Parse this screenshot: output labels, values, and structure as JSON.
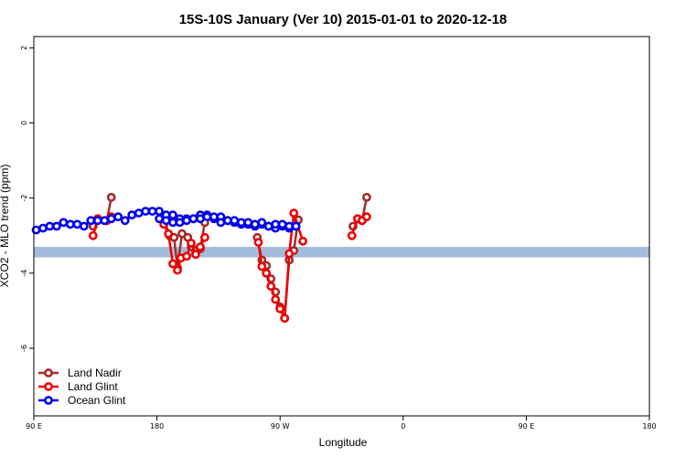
{
  "chart_data": {
    "type": "line",
    "title": "15S-10S January (Ver 10)   2015-01-01 to 2020-12-18",
    "xlabel": "Longitude",
    "ylabel": "XCO2 - MLO trend (ppm)",
    "xlim": [
      -90,
      180
    ],
    "ylim": [
      -7.8,
      2.3
    ],
    "x_ticks": [
      -90,
      -36,
      18,
      72,
      126,
      180
    ],
    "x_tick_labels": [
      "90 E",
      "180",
      "90 W",
      "0",
      "90 E",
      "180"
    ],
    "y_ticks": [
      -6,
      -4,
      -2,
      0,
      2
    ],
    "y_tick_labels": [
      "-6",
      "-4",
      "-2",
      "0",
      "2"
    ],
    "grid": false,
    "legend_position": "bottom-left",
    "band": {
      "color": "#a4bcdc",
      "y0": -3.58,
      "y1": -3.3
    },
    "series": [
      {
        "name": "Land Nadir",
        "color": "#a52a2a",
        "segments": [
          {
            "x": [
              -64,
              -62,
              -58,
              -56
            ],
            "y": [
              -2.75,
              -2.55,
              -2.6,
              -1.98
            ]
          },
          {
            "x": [
              -32.5,
              -30.5,
              -28.5,
              -27,
              -25,
              -22.5,
              -21,
              -19,
              -17,
              -15
            ],
            "y": [
              -2.62,
              -3.0,
              -3.05,
              -3.85,
              -2.95,
              -3.05,
              -3.3,
              -3.4,
              -3.35,
              -2.65
            ]
          },
          {
            "x": [
              8,
              10,
              12,
              14,
              16,
              18,
              20,
              22,
              24,
              26
            ],
            "y": [
              -3.05,
              -3.65,
              -3.8,
              -4.15,
              -4.5,
              -4.9,
              -5.2,
              -3.65,
              -3.4,
              -2.58
            ]
          },
          {
            "x": [
              50,
              52,
              54,
              56
            ],
            "y": [
              -2.75,
              -2.55,
              -2.6,
              -1.98
            ]
          }
        ]
      },
      {
        "name": "Land Glint",
        "color": "#ee0000",
        "segments": [
          {
            "x": [
              -64,
              -62,
              -58,
              -56
            ],
            "y": [
              -3.0,
              -2.55,
              -2.6,
              -2.5
            ]
          },
          {
            "x": [
              -33,
              -31,
              -29,
              -27,
              -25.5,
              -23,
              -21,
              -19,
              -17,
              -15
            ],
            "y": [
              -2.7,
              -2.95,
              -3.75,
              -3.92,
              -3.6,
              -3.55,
              -3.2,
              -3.5,
              -3.3,
              -3.05
            ]
          },
          {
            "x": [
              8.5,
              10,
              12,
              14,
              16,
              18,
              20,
              22,
              24,
              28
            ],
            "y": [
              -3.18,
              -3.82,
              -4.0,
              -4.35,
              -4.7,
              -4.95,
              -5.2,
              -3.48,
              -2.4,
              -3.15
            ]
          },
          {
            "x": [
              49.5,
              52,
              54,
              56
            ],
            "y": [
              -3.0,
              -2.55,
              -2.6,
              -2.5
            ]
          }
        ]
      },
      {
        "name": "Ocean Glint",
        "color": "#0000ee",
        "segments": [
          {
            "x": [
              -89,
              -86,
              -83,
              -80,
              -77,
              -74,
              -71,
              -68,
              -65,
              -62,
              -59,
              -56,
              -53,
              -50,
              -47,
              -44,
              -41,
              -38,
              -35,
              -32,
              -29,
              -26,
              -23,
              -20,
              -17,
              -14,
              -11,
              -8,
              -5,
              -2,
              1,
              4,
              7,
              10,
              13,
              16,
              19,
              22,
              25
            ],
            "y": [
              -2.85,
              -2.8,
              -2.75,
              -2.75,
              -2.65,
              -2.7,
              -2.7,
              -2.75,
              -2.6,
              -2.6,
              -2.6,
              -2.55,
              -2.5,
              -2.6,
              -2.45,
              -2.4,
              -2.35,
              -2.35,
              -2.35,
              -2.45,
              -2.45,
              -2.55,
              -2.55,
              -2.55,
              -2.45,
              -2.45,
              -2.55,
              -2.5,
              -2.6,
              -2.65,
              -2.7,
              -2.7,
              -2.75,
              -2.7,
              -2.75,
              -2.8,
              -2.75,
              -2.8,
              -2.75
            ]
          },
          {
            "x": [
              -35,
              -32,
              -29,
              -26,
              -23,
              -20,
              -17,
              -14,
              -11,
              -8,
              -5,
              -2,
              1,
              4,
              7,
              10,
              13,
              16,
              19,
              22,
              25
            ],
            "y": [
              -2.55,
              -2.6,
              -2.65,
              -2.65,
              -2.6,
              -2.55,
              -2.55,
              -2.5,
              -2.5,
              -2.65,
              -2.6,
              -2.6,
              -2.65,
              -2.65,
              -2.7,
              -2.65,
              -2.75,
              -2.7,
              -2.7,
              -2.75,
              -2.75
            ]
          }
        ]
      }
    ]
  }
}
